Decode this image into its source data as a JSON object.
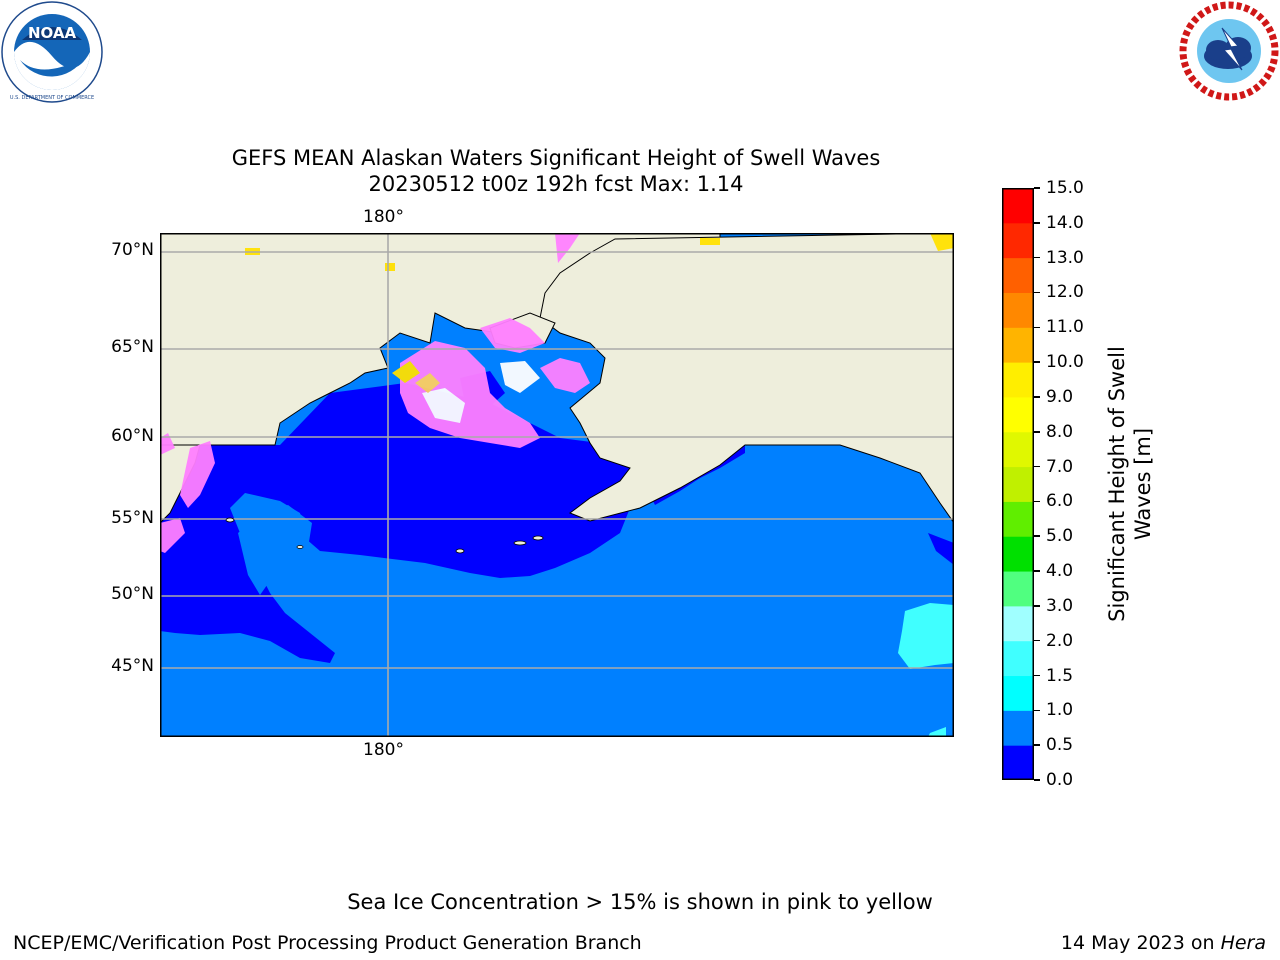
{
  "logos": {
    "noaa": {
      "text": "NOAA",
      "ring_text": "NATIONAL OCEANIC AND ATMOSPHERIC ADMINISTRATION · U.S. DEPARTMENT OF COMMERCE"
    },
    "nws": {
      "ring_text": "NATIONAL WEATHER SERVICE"
    }
  },
  "title": {
    "line1": "GEFS MEAN Alaskan Waters Significant Height of Swell Waves",
    "line2": "20230512 t00z 192h fcst   Max: 1.14"
  },
  "map": {
    "top_lon_label": "180°",
    "bottom_lon_label": "180°",
    "lat_labels": [
      "70°N",
      "65°N",
      "60°N",
      "55°N",
      "50°N",
      "45°N"
    ],
    "colors": {
      "land": "#eeeedc",
      "band_0_05": "#0000ff",
      "band_05_10": "#0080ff",
      "band_10_15": "#40ffff",
      "sea_ice_pink": "#ff80ff",
      "sea_ice_yellow": "#ffe000",
      "grid": "#aaaaaa"
    }
  },
  "colorbar": {
    "label_line1": "Significant Height of Swell",
    "label_line2": "Waves [m]",
    "ticks": [
      "0.0",
      "0.5",
      "1.0",
      "1.5",
      "2.0",
      "3.0",
      "4.0",
      "5.0",
      "6.0",
      "7.0",
      "8.0",
      "9.0",
      "10.0",
      "11.0",
      "12.0",
      "13.0",
      "14.0",
      "15.0"
    ],
    "colors": [
      "#0000ff",
      "#0080ff",
      "#00ffff",
      "#40ffff",
      "#a0ffff",
      "#50ff80",
      "#00e000",
      "#60ee00",
      "#c0f000",
      "#e0f800",
      "#ffff00",
      "#ffee00",
      "#ffb400",
      "#ff8800",
      "#ff6000",
      "#ff2800",
      "#ff0000"
    ]
  },
  "footer": {
    "sea_ice_note": "Sea Ice Concentration > 15% is shown in pink to yellow",
    "left": "NCEP/EMC/Verification Post Processing Product Generation Branch",
    "right_date": "14 May 2023 on",
    "right_host": "Hera"
  }
}
